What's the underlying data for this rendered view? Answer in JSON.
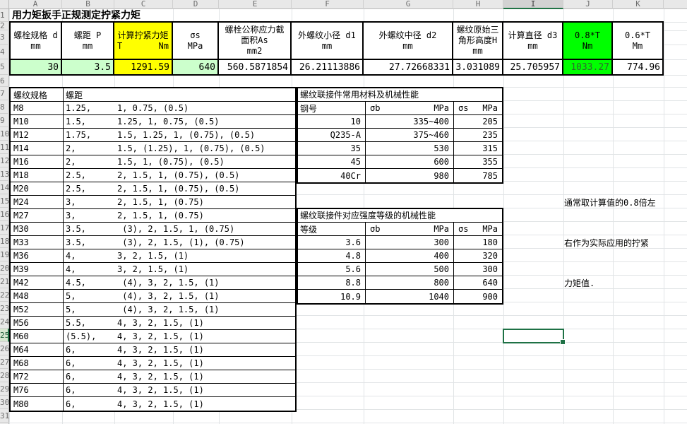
{
  "sheet": {
    "title": "用力矩扳手正规测定拧紧力矩",
    "column_letters": [
      "A",
      "B",
      "C",
      "D",
      "E",
      "F",
      "G",
      "H",
      "I",
      "J",
      "K"
    ],
    "selected_column": "I",
    "selected_row": 25,
    "row_count": 31
  },
  "colors": {
    "yellow": "#FFFF00",
    "bright_green": "#00FF00",
    "pale_green": "#CCFFCC",
    "selection_green": "#1E7145",
    "green_value_text": "#2e6b2e"
  },
  "top_table": {
    "columns": [
      {
        "lines": [
          "螺栓规格 d",
          "mm"
        ],
        "value": "30",
        "header_bg": "white",
        "value_bg": "palegreen"
      },
      {
        "lines": [
          "螺距 P",
          "mm"
        ],
        "value": "3.5",
        "header_bg": "white",
        "value_bg": "palegreen"
      },
      {
        "lines": [
          "计算拧紧力矩"
        ],
        "footer_left": "T",
        "footer_right": "Nm",
        "value": "1291.59",
        "header_bg": "yellow",
        "value_bg": "yellow"
      },
      {
        "lines": [
          "σs",
          "MPa"
        ],
        "value": "640",
        "header_bg": "white",
        "value_bg": "palegreen"
      },
      {
        "lines": [
          "螺栓公称应力截",
          "面积As",
          "mm2"
        ],
        "value": "560.5871854",
        "header_bg": "white",
        "value_bg": "white"
      },
      {
        "lines": [
          "外螺纹小径 d1",
          "mm"
        ],
        "value": "26.21113886",
        "header_bg": "white",
        "value_bg": "white"
      },
      {
        "lines": [
          "外螺纹中径 d2",
          "mm"
        ],
        "value": "27.72668331",
        "header_bg": "white",
        "value_bg": "white"
      },
      {
        "lines": [
          "螺纹原始三",
          "角形高度H",
          "mm"
        ],
        "value": "3.031089",
        "header_bg": "white",
        "value_bg": "white"
      },
      {
        "lines": [
          "计算直径 d3",
          "mm"
        ],
        "value": "25.705957",
        "header_bg": "white",
        "value_bg": "white"
      },
      {
        "lines": [
          "0.8*T",
          "Nm"
        ],
        "value": "1033.27",
        "header_bg": "green",
        "value_bg": "green"
      },
      {
        "lines": [
          "0.6*T",
          "Mm"
        ],
        "value": "774.96",
        "header_bg": "white",
        "value_bg": "white"
      }
    ]
  },
  "left_table": {
    "col1_header": "螺纹规格",
    "col2_header": "螺距",
    "rows": [
      {
        "spec": "M8",
        "pitch": "1.25,",
        "series": "1, 0.75, (0.5)"
      },
      {
        "spec": "M10",
        "pitch": "1.5,",
        "series": "1.25, 1, 0.75, (0.5)"
      },
      {
        "spec": "M12",
        "pitch": "1.75,",
        "series": "1.5, 1.25, 1, (0.75), (0.5)"
      },
      {
        "spec": "M14",
        "pitch": "2,",
        "series": "1.5, (1.25), 1, (0.75), (0.5)"
      },
      {
        "spec": "M16",
        "pitch": "2,",
        "series": "1.5, 1, (0.75), (0.5)"
      },
      {
        "spec": "M18",
        "pitch": "2.5,",
        "series": "2, 1.5, 1, (0.75), (0.5)"
      },
      {
        "spec": "M20",
        "pitch": "2.5,",
        "series": "2, 1.5, 1, (0.75), (0.5)"
      },
      {
        "spec": "M24",
        "pitch": "3,",
        "series": "2, 1.5, 1, (0.75)"
      },
      {
        "spec": "M27",
        "pitch": "3,",
        "series": "2, 1.5, 1, (0.75)"
      },
      {
        "spec": "M30",
        "pitch": "3.5,",
        "series": " (3), 2, 1.5, 1, (0.75)"
      },
      {
        "spec": "M33",
        "pitch": "3.5,",
        "series": " (3), 2, 1.5, (1), (0.75)"
      },
      {
        "spec": "M36",
        "pitch": "4,",
        "series": "3, 2, 1.5, (1)"
      },
      {
        "spec": "M39",
        "pitch": "4,",
        "series": "3, 2, 1.5, (1)"
      },
      {
        "spec": "M42",
        "pitch": "4.5,",
        "series": " (4), 3, 2, 1.5, (1)"
      },
      {
        "spec": "M48",
        "pitch": "5,",
        "series": " (4), 3, 2, 1.5, (1)"
      },
      {
        "spec": "M52",
        "pitch": "5,",
        "series": " (4), 3, 2, 1.5, (1)"
      },
      {
        "spec": "M56",
        "pitch": "5.5,",
        "series": "4, 3, 2, 1.5, (1)"
      },
      {
        "spec": "M60",
        "pitch": "(5.5),",
        "series": "4, 3, 2, 1.5, (1)"
      },
      {
        "spec": "M64",
        "pitch": "6,",
        "series": "4, 3, 2, 1.5, (1)"
      },
      {
        "spec": "M68",
        "pitch": "6,",
        "series": "4, 3, 2, 1.5, (1)"
      },
      {
        "spec": "M72",
        "pitch": "6,",
        "series": "4, 3, 2, 1.5, (1)"
      },
      {
        "spec": "M76",
        "pitch": "6,",
        "series": "4, 3, 2, 1.5, (1)"
      },
      {
        "spec": "M80",
        "pitch": "6,",
        "series": "4, 3, 2, 1.5, (1)"
      }
    ]
  },
  "material_table": {
    "title": "螺纹联接件常用材料及机械性能",
    "col1_header": "钢号",
    "sigma_b": "σb",
    "sigma_s": "σs",
    "unit": "MPa",
    "rows": [
      [
        "10",
        "335~400",
        "205"
      ],
      [
        "Q235-A",
        "375~460",
        "235"
      ],
      [
        "35",
        "530",
        "315"
      ],
      [
        "45",
        "600",
        "355"
      ],
      [
        "40Cr",
        "980",
        "785"
      ]
    ]
  },
  "grade_table": {
    "title": "螺纹联接件对应强度等级的机械性能",
    "col1_header": "等级",
    "sigma_b": "σb",
    "sigma_s": "σs",
    "unit": "MPa",
    "rows": [
      [
        "3.6",
        "300",
        "180"
      ],
      [
        "4.8",
        "400",
        "320"
      ],
      [
        "5.6",
        "500",
        "300"
      ],
      [
        "8.8",
        "800",
        "640"
      ],
      [
        "10.9",
        "1040",
        "900"
      ]
    ]
  },
  "note": {
    "lines": [
      "通常取计算值的0.8倍左",
      "右作为实际应用的拧紧",
      "力矩值."
    ]
  }
}
